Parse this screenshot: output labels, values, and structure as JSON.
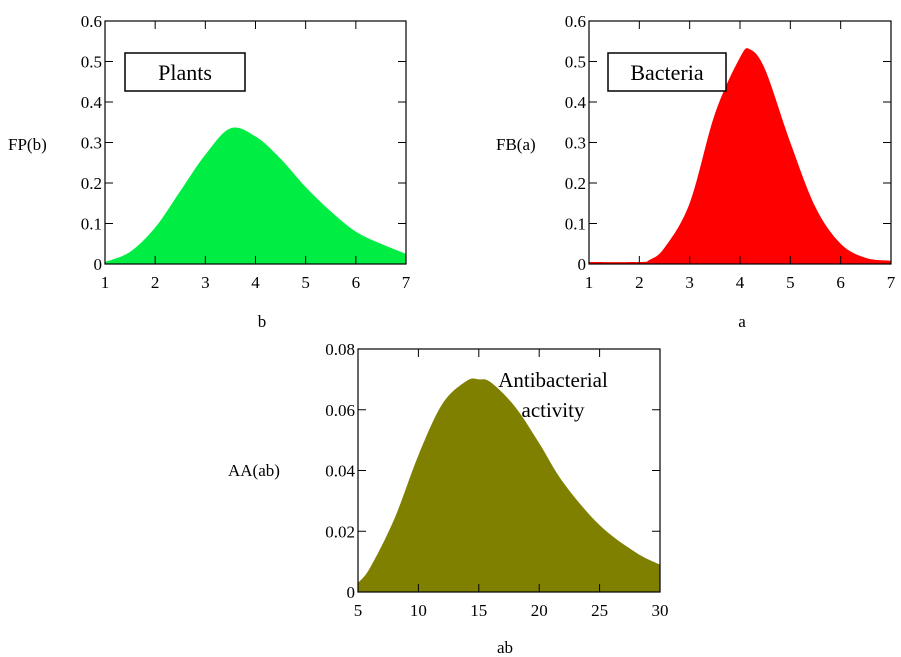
{
  "chart_data": [
    {
      "type": "area",
      "ylabel": "FP(b)",
      "xlabel": "b",
      "annotation": "Plants",
      "annotation_boxed": true,
      "xlim": [
        1,
        7
      ],
      "ylim": [
        0,
        0.6
      ],
      "xticks": [
        1,
        2,
        3,
        4,
        5,
        6,
        7
      ],
      "yticks": [
        0,
        0.1,
        0.2,
        0.3,
        0.4,
        0.5,
        0.6
      ],
      "ytick_labels": [
        "0",
        "0.1",
        "0.2",
        "0.3",
        "0.4",
        "0.5",
        "0.6"
      ],
      "fill_color": "#00ee44",
      "x": [
        1,
        1.5,
        2,
        2.5,
        3,
        3.5,
        4,
        4.5,
        5,
        5.5,
        6,
        6.5,
        7
      ],
      "y": [
        0.005,
        0.03,
        0.09,
        0.18,
        0.27,
        0.335,
        0.315,
        0.26,
        0.19,
        0.13,
        0.08,
        0.05,
        0.025
      ]
    },
    {
      "type": "area",
      "ylabel": "FB(a)",
      "xlabel": "a",
      "annotation": "Bacteria",
      "annotation_boxed": true,
      "xlim": [
        1,
        7
      ],
      "ylim": [
        0,
        0.6
      ],
      "xticks": [
        1,
        2,
        3,
        4,
        5,
        6,
        7
      ],
      "yticks": [
        0,
        0.1,
        0.2,
        0.3,
        0.4,
        0.5,
        0.6
      ],
      "ytick_labels": [
        "0",
        "0.1",
        "0.2",
        "0.3",
        "0.4",
        "0.5",
        "0.6"
      ],
      "fill_color": "#ff0000",
      "x": [
        1,
        2,
        2.2,
        2.5,
        3,
        3.5,
        4,
        4.2,
        4.5,
        5,
        5.5,
        6,
        6.5,
        7
      ],
      "y": [
        0.005,
        0.005,
        0.01,
        0.04,
        0.15,
        0.37,
        0.51,
        0.53,
        0.48,
        0.3,
        0.14,
        0.05,
        0.015,
        0.008
      ]
    },
    {
      "type": "area",
      "ylabel": "AA(ab)",
      "xlabel": "ab",
      "annotation_lines": [
        "Antibacterial",
        "activity"
      ],
      "annotation_boxed": false,
      "xlim": [
        5,
        30
      ],
      "ylim": [
        0,
        0.08
      ],
      "xticks": [
        5,
        10,
        15,
        20,
        25,
        30
      ],
      "yticks": [
        0,
        0.02,
        0.04,
        0.06,
        0.08
      ],
      "ytick_labels": [
        "0",
        "0.02",
        "0.04",
        "0.06",
        "0.08"
      ],
      "fill_color": "#808000",
      "x": [
        5,
        6,
        8,
        10,
        12,
        14,
        15,
        16,
        18,
        20,
        22,
        25,
        28,
        30
      ],
      "y": [
        0.003,
        0.008,
        0.024,
        0.045,
        0.062,
        0.0695,
        0.07,
        0.069,
        0.061,
        0.049,
        0.036,
        0.022,
        0.013,
        0.009
      ]
    }
  ]
}
